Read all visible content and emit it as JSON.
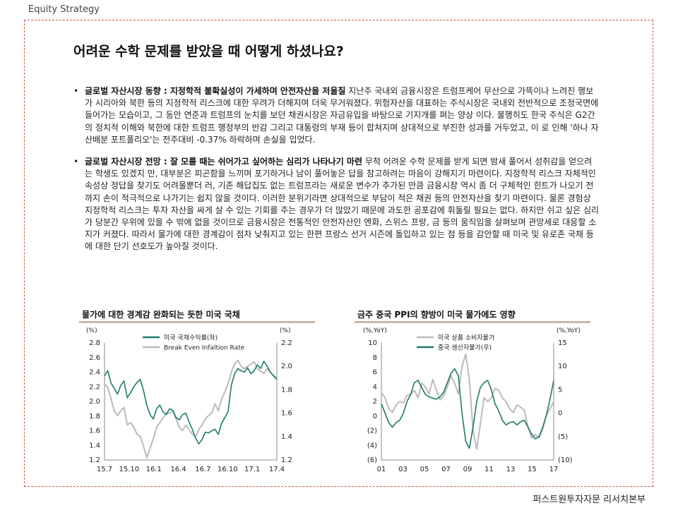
{
  "header": {
    "section": "Equity Strategy"
  },
  "title": "어려운 수학 문제를 받았을 때 어떻게 하셨나요?",
  "bullets": [
    {
      "heading": "글로벌 자산시장 동향 : 지정학적 불확실성이 가세하며 안전자산을 저울질",
      "body": "지난주 국내외 금융시장은 트럼프케어 무산으로 가뜩이나 느려진 행보가 시리아와 북한 등의 지정학적 리스크에 대한 우려가 더해지며 더욱 무거워졌다. 위험자산을 대표하는 주식시장은 국내외 전반적으로 조정국면에 들어가는 모습이고, 그 동안 연준과 트럼프의 눈치를 보던 채권시장은 자금유입을 바탕으로 기지개를 펴는 양상 이다. 불행히도 한국 주식은 G2간의 정치적 이해와 북한에 대한 트럼프 행정부의 반감 그리고 대통령의 부재 등이 합쳐지며 상대적으로 부진한 성과를 거두었고, 이 로 인해 '하나 자산배분 포트폴리오'는 전주대비 -0.37% 하락하며 손실을 입었다."
    },
    {
      "heading": "글로벌 자산시장 전망 : 잘 모를 때는 쉬어가고 싶어하는 심리가 나타나기 마련",
      "body": "무척 어려운 수학 문제를 받게 되면 밤새 풀어서 성취감을 얻으려는 학생도 있겠지 만, 대부분은 피곤함을 느끼며 포기하거나 남이 풀어놓은 답을 참고하려는 마음이 강해지기 마련이다. 지정학적 리스크 자체적인 속성상 정답을 찾기도 어려울뿐더 러, 기존 해답집도 없는 트럼프라는 새로운 변수가 추가된 만큼 금융시장 역시 좀 더 구체적인 힌트가 나오기 전까지 손이 적극적으로 나가기는 쉽지 않을 것이다. 이러한 분위기라면 상대적으로 부담이 적은 채권 등의 안전자산을 찾기 마련이다. 물론 경험상 지정학적 리스크는 투자 자산을 싸게 살 수 있는 기회를 주는 경우가 더 많았기 때문에 과도한 공포감에 휘둘릴 필요는 없다. 하지만 쉬고 싶은 심리가 당분간 우위에 있을 수 밖에 없을 것이므로 금융시장은 전통적인 안전자산인 엔화, 스위스 프랑, 금 등의 움직임을 살펴보며 관망세로 대응할 소지가 커졌다. 따라서 물가에 대한 경계감이 점차 낮춰지고 있는 한편 프랑스 선거 시즌에 돌입하고 있는 점 등을 감안할 때 미국 및 유로존 국채 등에 대한 단기 선호도가 높아질 것이다."
    }
  ],
  "chart_data": [
    {
      "type": "line",
      "title": "물가에 대한 경계감 완화되는 듯한 미국 국채",
      "y_left_unit": "(%)",
      "y_right_unit": "(%)",
      "y_left_ticks": [
        "2.8",
        "2.6",
        "2.4",
        "2.2",
        "2.0",
        "1.8",
        "1.6",
        "1.4",
        "1.2"
      ],
      "y_right_ticks": [
        "2.2",
        "2.0",
        "1.8",
        "1.6",
        "1.4",
        "1.2"
      ],
      "x_ticks": [
        "15.7",
        "15.10",
        "16.1",
        "16.4",
        "16.7",
        "16.10",
        "17.1",
        "17.4"
      ],
      "ylim_left": [
        1.2,
        2.8
      ],
      "ylim_right": [
        1.2,
        2.2
      ],
      "series": [
        {
          "name": "미국 국채수익률(좌)",
          "axis": "left",
          "color": "#1f7a6b",
          "values": [
            2.35,
            2.42,
            2.25,
            2.18,
            2.1,
            2.22,
            2.28,
            2.05,
            2.12,
            2.2,
            2.26,
            2.3,
            2.15,
            1.95,
            1.82,
            1.76,
            1.9,
            1.95,
            1.86,
            1.82,
            1.9,
            1.88,
            1.78,
            1.75,
            1.82,
            1.84,
            1.72,
            1.62,
            1.5,
            1.42,
            1.48,
            1.58,
            1.57,
            1.6,
            1.62,
            1.55,
            1.7,
            1.78,
            1.86,
            2.22,
            2.38,
            2.45,
            2.42,
            2.4,
            2.46,
            2.38,
            2.42,
            2.5,
            2.45,
            2.55,
            2.48,
            2.4,
            2.35,
            2.3
          ]
        },
        {
          "name": "Break Even Infaltion Rate",
          "axis": "right",
          "color": "#bbbbbb",
          "values": [
            1.85,
            1.82,
            1.72,
            1.62,
            1.58,
            1.62,
            1.65,
            1.5,
            1.52,
            1.48,
            1.42,
            1.4,
            1.32,
            1.22,
            1.3,
            1.38,
            1.48,
            1.52,
            1.56,
            1.6,
            1.6,
            1.62,
            1.55,
            1.48,
            1.45,
            1.5,
            1.46,
            1.42,
            1.4,
            1.46,
            1.5,
            1.55,
            1.58,
            1.6,
            1.68,
            1.62,
            1.72,
            1.78,
            1.85,
            1.95,
            2.02,
            2.05,
            2.0,
            1.98,
            2.0,
            2.02,
            2.04,
            1.98,
            1.96,
            1.94,
            1.98,
            1.95,
            1.92,
            1.9
          ]
        }
      ]
    },
    {
      "type": "line",
      "title": "금주 중국 PPI의 향방이 미국 물가에도 영향",
      "y_left_unit": "(%,YoY)",
      "y_right_unit": "(%,YoY)",
      "y_left_ticks": [
        "10",
        "8",
        "6",
        "4",
        "2",
        "0",
        "(2)",
        "(4)",
        "(6)"
      ],
      "y_right_ticks": [
        "15",
        "10",
        "5",
        "0",
        "(5)",
        "(10)"
      ],
      "x_ticks": [
        "01",
        "03",
        "05",
        "07",
        "09",
        "11",
        "13",
        "15",
        "17"
      ],
      "ylim_left": [
        -6,
        10
      ],
      "ylim_right": [
        -10,
        15
      ],
      "series": [
        {
          "name": "미국 상품 소비자물가",
          "axis": "left",
          "color": "#bbbbbb",
          "values": [
            3.2,
            2.5,
            1.0,
            0.5,
            1.5,
            2.0,
            1.8,
            2.8,
            3.0,
            3.5,
            2.5,
            4.5,
            4.0,
            3.0,
            5.0,
            3.5,
            2.2,
            2.8,
            4.0,
            5.5,
            4.5,
            3.0,
            6.8,
            8.5,
            5.0,
            -2.0,
            -4.5,
            -1.0,
            2.5,
            2.0,
            2.5,
            3.8,
            3.5,
            2.5,
            2.0,
            1.0,
            0.5,
            1.5,
            1.2,
            0.8,
            -1.5,
            -3.0,
            -2.5,
            -3.0,
            -1.8,
            0.2,
            1.0,
            2.0
          ]
        },
        {
          "name": "중국 생산자물가(우)",
          "axis": "right",
          "color": "#1f7a6b",
          "values": [
            2.0,
            0.0,
            -2.0,
            -3.0,
            -2.0,
            -1.5,
            0.0,
            2.5,
            4.0,
            6.5,
            7.0,
            5.5,
            4.0,
            3.5,
            3.2,
            3.0,
            3.5,
            4.5,
            6.5,
            8.5,
            9.5,
            8.0,
            0.0,
            -6.0,
            -7.5,
            -3.0,
            2.5,
            5.5,
            6.5,
            7.0,
            5.0,
            2.0,
            0.5,
            -1.5,
            -2.5,
            -2.0,
            -1.8,
            -2.5,
            -1.8,
            -1.5,
            -3.0,
            -4.5,
            -5.5,
            -5.0,
            -3.0,
            -0.5,
            3.0,
            7.0
          ]
        }
      ]
    }
  ],
  "footer": {
    "company": "퍼스트원투자자문 리서치본부"
  }
}
